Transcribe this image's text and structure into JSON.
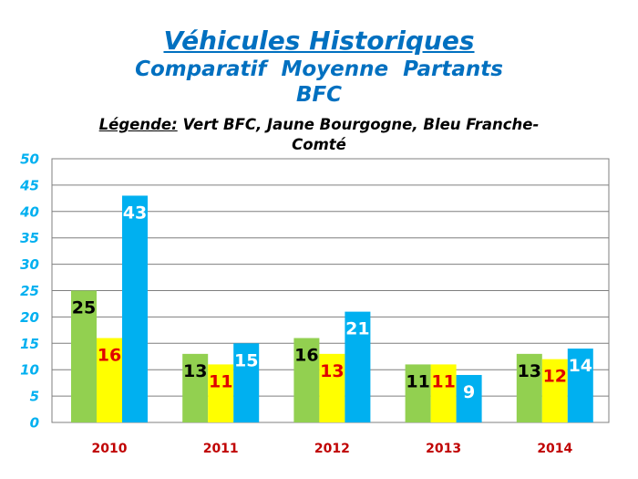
{
  "title": {
    "line1": "Véhicules Historiques",
    "line2": "Comparatif  Moyenne  Partants",
    "line3": "BFC"
  },
  "legend": {
    "key": "Légende:",
    "text": " Vert BFC, Jaune Bourgogne, Bleu Franche-Comté"
  },
  "colors": {
    "BFC": "#92D050",
    "Bourgogne": "#FFFF00",
    "Franche-Comte": "#00B0F0",
    "title": "#0070C0",
    "y_ticks": "#00B0F0",
    "x_ticks": "#C00000",
    "label_BFC": "#000000",
    "label_Bourgogne": "#E00000",
    "label_Franche-Comte": "#FFFFFF"
  },
  "chart_data": {
    "type": "bar",
    "categories": [
      "2010",
      "2011",
      "2012",
      "2013",
      "2014"
    ],
    "series": [
      {
        "name": "BFC",
        "values": [
          25,
          13,
          16,
          11,
          13
        ]
      },
      {
        "name": "Bourgogne",
        "values": [
          16,
          11,
          13,
          11,
          12
        ]
      },
      {
        "name": "Franche-Comte",
        "values": [
          43,
          15,
          21,
          9,
          14
        ]
      }
    ],
    "ylim": [
      0,
      50
    ],
    "y_ticks": [
      0,
      5,
      10,
      15,
      20,
      25,
      30,
      35,
      40,
      45,
      50
    ],
    "grid": true,
    "data_labels": true
  }
}
